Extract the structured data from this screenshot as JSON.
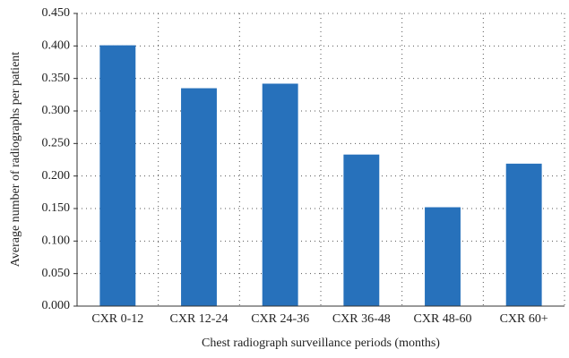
{
  "chart_data": {
    "type": "bar",
    "x_label": "Chest radiograph surveillance periods (months)",
    "y_label": "Average number of radiographs per patient",
    "categories": [
      "CXR 0-12",
      "CXR 12-24",
      "CXR 24-36",
      "CXR 36-48",
      "CXR 48-60",
      "CXR 60+"
    ],
    "values": [
      0.401,
      0.335,
      0.342,
      0.233,
      0.152,
      0.219
    ],
    "color": "#2771bb",
    "ylim": [
      0,
      0.45
    ],
    "yticks": [
      {
        "value": 0,
        "label": "0.000"
      },
      {
        "value": 0.05,
        "label": "0.050"
      },
      {
        "value": 0.1,
        "label": "0.100"
      },
      {
        "value": 0.15,
        "label": "0.150"
      },
      {
        "value": 0.2,
        "label": "0.200"
      },
      {
        "value": 0.25,
        "label": "0.250"
      },
      {
        "value": 0.3,
        "label": "0.300"
      },
      {
        "value": 0.35,
        "label": "0.350"
      },
      {
        "value": 0.4,
        "label": "0.400"
      },
      {
        "value": 0.45,
        "label": "0.450"
      }
    ],
    "grid": true
  }
}
